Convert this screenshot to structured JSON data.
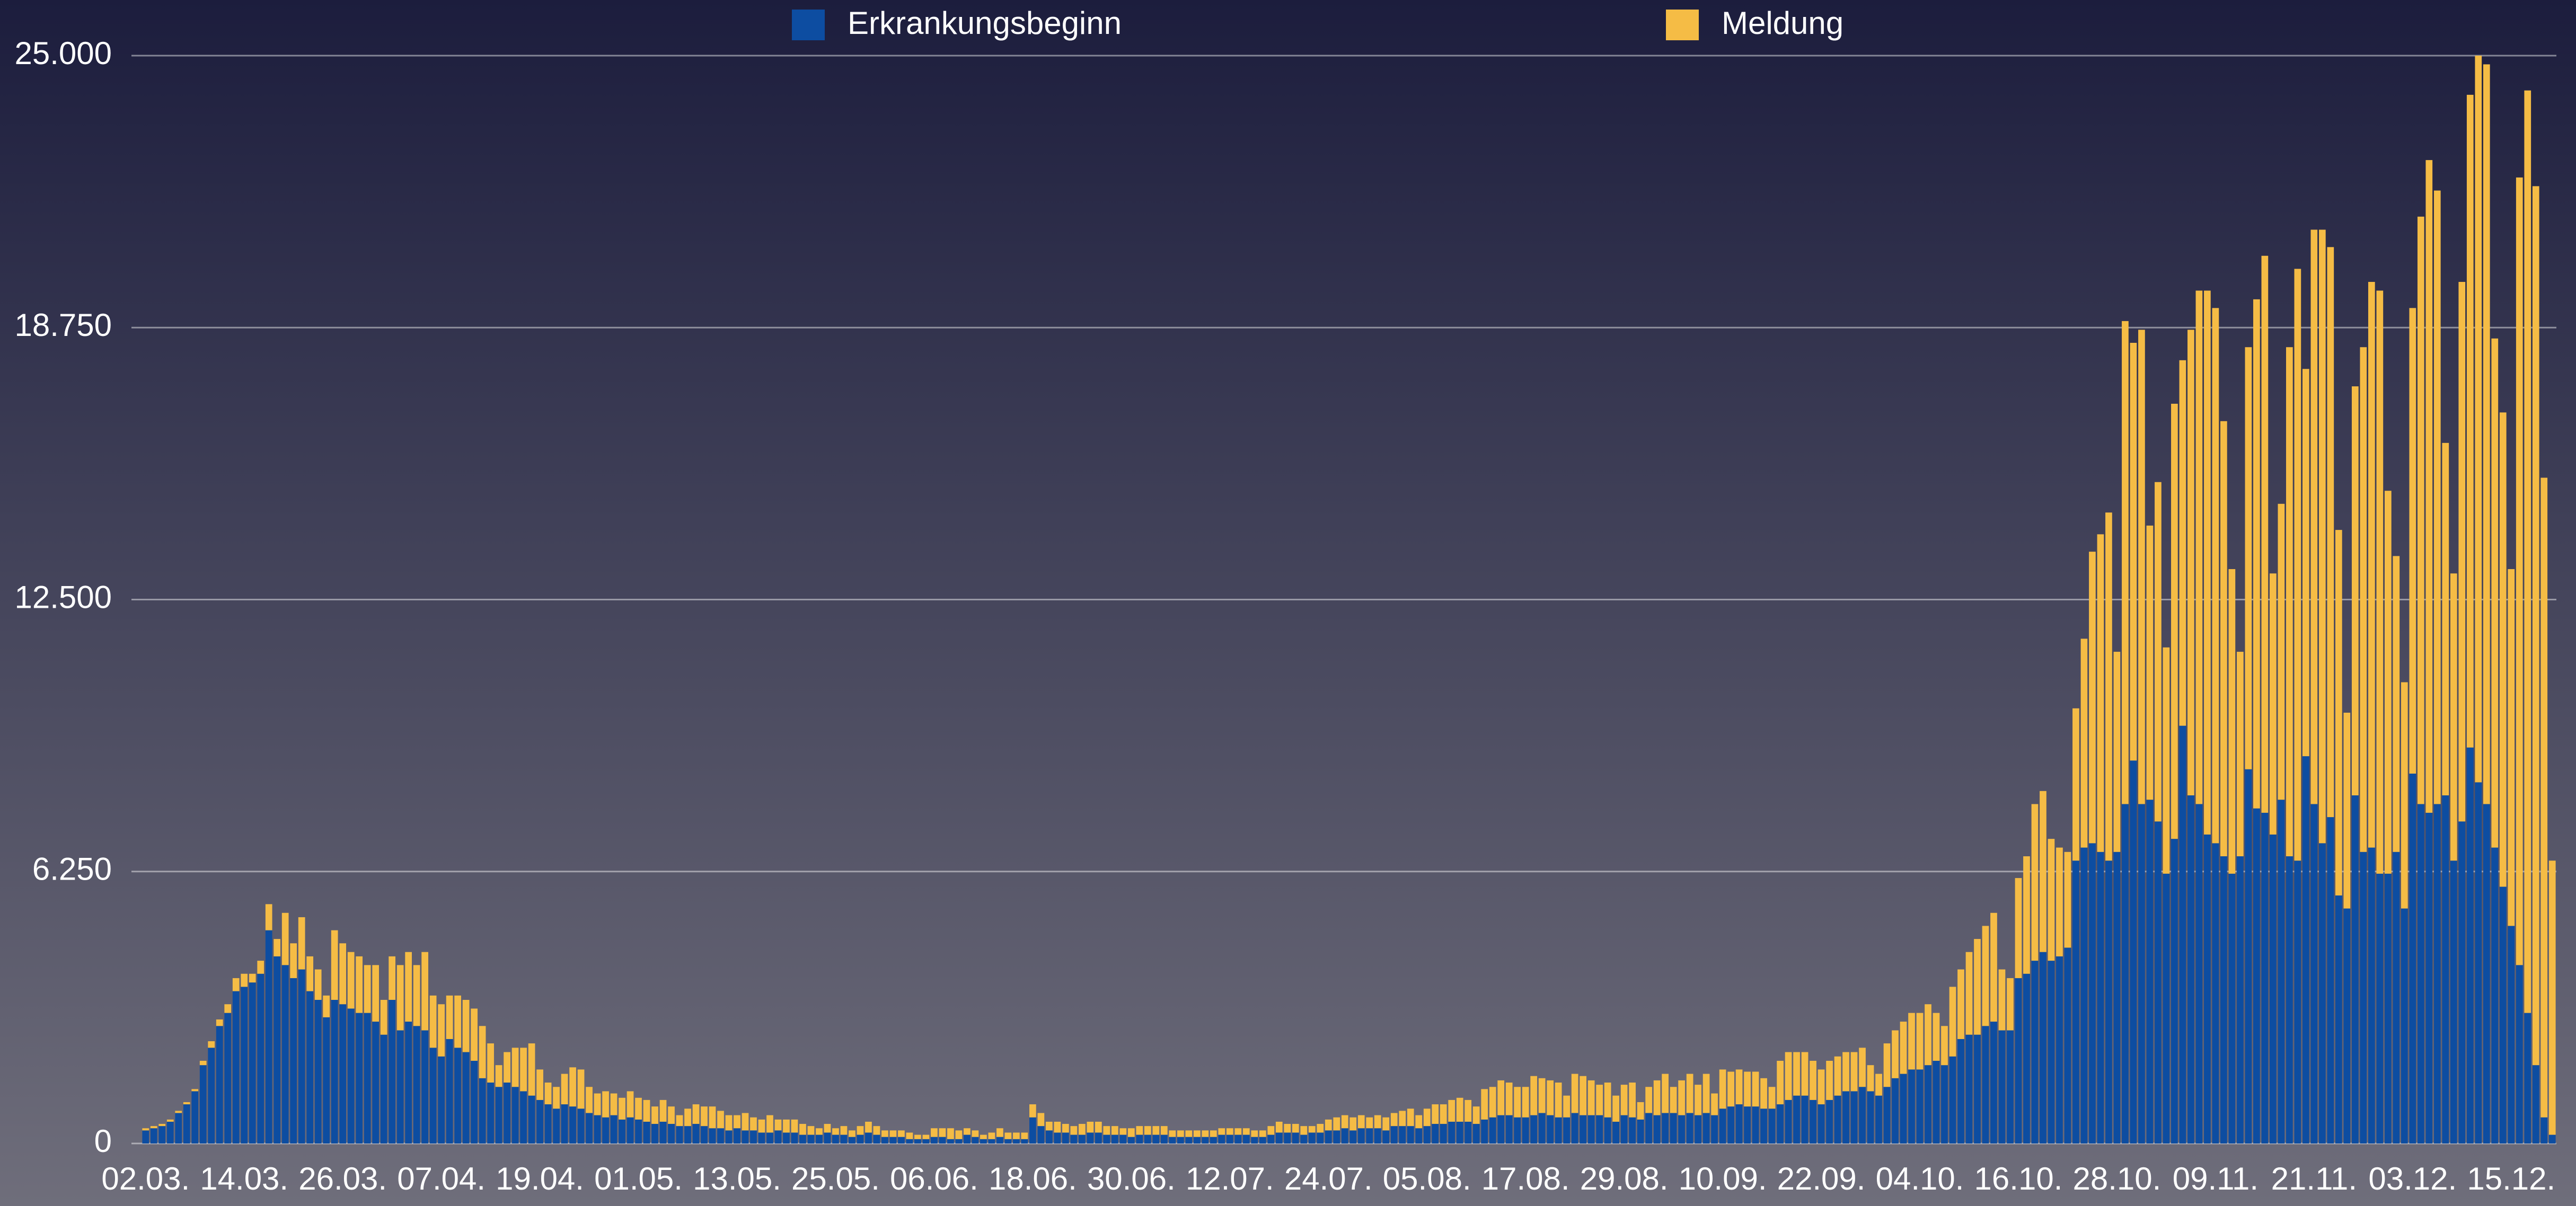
{
  "chart_data": {
    "type": "stacked_bar",
    "categories": [
      "02.03.",
      null,
      null,
      null,
      null,
      null,
      null,
      null,
      null,
      null,
      null,
      null,
      "14.03.",
      null,
      null,
      null,
      null,
      null,
      null,
      null,
      null,
      null,
      null,
      null,
      "26.03.",
      null,
      null,
      null,
      null,
      null,
      null,
      null,
      null,
      null,
      null,
      null,
      "07.04.",
      null,
      null,
      null,
      null,
      null,
      null,
      null,
      null,
      null,
      null,
      null,
      "19.04.",
      null,
      null,
      null,
      null,
      null,
      null,
      null,
      null,
      null,
      null,
      null,
      "01.05.",
      null,
      null,
      null,
      null,
      null,
      null,
      null,
      null,
      null,
      null,
      null,
      "13.05.",
      null,
      null,
      null,
      null,
      null,
      null,
      null,
      null,
      null,
      null,
      null,
      "25.05.",
      null,
      null,
      null,
      null,
      null,
      null,
      null,
      null,
      null,
      null,
      null,
      "06.06.",
      null,
      null,
      null,
      null,
      null,
      null,
      null,
      null,
      null,
      null,
      null,
      "18.06.",
      null,
      null,
      null,
      null,
      null,
      null,
      null,
      null,
      null,
      null,
      null,
      "30.06.",
      null,
      null,
      null,
      null,
      null,
      null,
      null,
      null,
      null,
      null,
      null,
      "12.07.",
      null,
      null,
      null,
      null,
      null,
      null,
      null,
      null,
      null,
      null,
      null,
      "24.07.",
      null,
      null,
      null,
      null,
      null,
      null,
      null,
      null,
      null,
      null,
      null,
      "05.08.",
      null,
      null,
      null,
      null,
      null,
      null,
      null,
      null,
      null,
      null,
      null,
      "17.08.",
      null,
      null,
      null,
      null,
      null,
      null,
      null,
      null,
      null,
      null,
      null,
      "29.08.",
      null,
      null,
      null,
      null,
      null,
      null,
      null,
      null,
      null,
      null,
      null,
      "10.09.",
      null,
      null,
      null,
      null,
      null,
      null,
      null,
      null,
      null,
      null,
      null,
      "22.09.",
      null,
      null,
      null,
      null,
      null,
      null,
      null,
      null,
      null,
      null,
      null,
      "04.10.",
      null,
      null,
      null,
      null,
      null,
      null,
      null,
      null,
      null,
      null,
      null,
      "16.10.",
      null,
      null,
      null,
      null,
      null,
      null,
      null,
      null,
      null,
      null,
      null,
      "28.10.",
      null,
      null,
      null,
      null,
      null,
      null,
      null,
      null,
      null,
      null,
      null,
      "09.11.",
      null,
      null,
      null,
      null,
      null,
      null,
      null,
      null,
      null,
      null,
      null,
      "21.11.",
      null,
      null,
      null,
      null,
      null,
      null,
      null,
      null,
      null,
      null,
      null,
      "03.12.",
      null,
      null,
      null,
      null,
      null,
      null,
      null,
      null,
      null,
      null,
      null,
      "15.12.",
      null,
      null,
      null,
      null,
      null
    ],
    "series": [
      {
        "name": "Erkrankungsbeginn",
        "color": "#0d4da1",
        "values": [
          300,
          350,
          400,
          500,
          700,
          900,
          1200,
          1800,
          2200,
          2700,
          3000,
          3500,
          3600,
          3700,
          3900,
          4900,
          4300,
          4100,
          3800,
          4000,
          3500,
          3300,
          2900,
          3300,
          3200,
          3100,
          3000,
          3000,
          2800,
          2500,
          3300,
          2600,
          2800,
          2700,
          2600,
          2200,
          2000,
          2400,
          2200,
          2100,
          1900,
          1500,
          1400,
          1300,
          1400,
          1300,
          1200,
          1100,
          1000,
          900,
          800,
          900,
          850,
          800,
          700,
          650,
          600,
          650,
          550,
          600,
          550,
          500,
          450,
          500,
          450,
          400,
          400,
          450,
          400,
          350,
          350,
          300,
          350,
          300,
          300,
          250,
          250,
          300,
          250,
          250,
          200,
          200,
          200,
          250,
          200,
          200,
          150,
          200,
          250,
          200,
          150,
          150,
          150,
          100,
          100,
          100,
          150,
          150,
          100,
          100,
          200,
          150,
          100,
          100,
          150,
          100,
          100,
          100,
          600,
          400,
          300,
          250,
          250,
          200,
          200,
          250,
          250,
          200,
          200,
          200,
          150,
          200,
          200,
          200,
          200,
          150,
          150,
          150,
          150,
          150,
          150,
          200,
          200,
          200,
          200,
          150,
          150,
          200,
          250,
          250,
          250,
          200,
          250,
          250,
          300,
          300,
          350,
          300,
          350,
          350,
          350,
          300,
          400,
          400,
          400,
          350,
          400,
          450,
          450,
          500,
          500,
          500,
          450,
          550,
          600,
          650,
          650,
          600,
          600,
          650,
          700,
          650,
          600,
          600,
          700,
          650,
          650,
          650,
          600,
          500,
          650,
          600,
          550,
          700,
          650,
          700,
          700,
          650,
          700,
          650,
          700,
          650,
          800,
          850,
          900,
          850,
          850,
          800,
          800,
          900,
          1000,
          1100,
          1100,
          1000,
          900,
          1000,
          1100,
          1200,
          1200,
          1300,
          1200,
          1100,
          1300,
          1500,
          1600,
          1700,
          1700,
          1800,
          1900,
          1800,
          2000,
          2400,
          2500,
          2500,
          2700,
          2800,
          2600,
          2600,
          3800,
          3900,
          4200,
          4400,
          4200,
          4300,
          4500,
          6500,
          6800,
          6900,
          6700,
          6500,
          6700,
          7800,
          8800,
          7800,
          7900,
          7400,
          6200,
          7000,
          9600,
          8000,
          7800,
          7100,
          6900,
          6600,
          6200,
          6600,
          8600,
          7700,
          7600,
          7100,
          7900,
          6600,
          6500,
          8900,
          7800,
          6900,
          7500,
          5700,
          5400,
          8000,
          6700,
          6800,
          6200,
          6200,
          6700,
          5400,
          8500,
          7800,
          7600,
          7800,
          8000,
          6500,
          7400,
          9100,
          8300,
          7800,
          6800,
          5900,
          5000,
          4100,
          3000,
          1800,
          600,
          200
        ]
      },
      {
        "name": "Meldung",
        "color": "#f5bc45",
        "values": [
          50,
          50,
          50,
          50,
          50,
          50,
          50,
          100,
          150,
          150,
          200,
          300,
          300,
          200,
          300,
          600,
          400,
          1200,
          800,
          1200,
          800,
          700,
          500,
          1600,
          1400,
          1300,
          1300,
          1100,
          1300,
          800,
          1000,
          1500,
          1600,
          1400,
          1800,
          1200,
          1200,
          1000,
          1200,
          1200,
          1200,
          1200,
          900,
          500,
          700,
          900,
          1000,
          1200,
          700,
          500,
          500,
          700,
          900,
          900,
          600,
          500,
          600,
          500,
          500,
          600,
          500,
          500,
          400,
          500,
          400,
          250,
          400,
          450,
          450,
          500,
          400,
          350,
          300,
          400,
          300,
          300,
          400,
          250,
          300,
          300,
          250,
          200,
          150,
          200,
          150,
          200,
          150,
          200,
          250,
          200,
          150,
          150,
          150,
          150,
          100,
          100,
          200,
          200,
          250,
          200,
          150,
          150,
          100,
          150,
          200,
          150,
          150,
          150,
          300,
          300,
          200,
          250,
          200,
          200,
          250,
          250,
          250,
          200,
          200,
          150,
          200,
          200,
          200,
          200,
          200,
          150,
          150,
          150,
          150,
          150,
          150,
          150,
          150,
          150,
          150,
          150,
          150,
          200,
          250,
          200,
          200,
          200,
          150,
          200,
          250,
          300,
          300,
          300,
          300,
          250,
          300,
          300,
          300,
          350,
          400,
          300,
          400,
          450,
          450,
          500,
          550,
          500,
          400,
          700,
          700,
          800,
          750,
          700,
          700,
          900,
          800,
          800,
          800,
          500,
          900,
          900,
          800,
          700,
          800,
          600,
          700,
          800,
          400,
          600,
          800,
          900,
          600,
          800,
          900,
          700,
          900,
          500,
          900,
          800,
          800,
          800,
          800,
          700,
          500,
          1000,
          1100,
          1000,
          1000,
          900,
          800,
          900,
          900,
          900,
          900,
          900,
          600,
          500,
          1000,
          1100,
          1200,
          1300,
          1300,
          1400,
          1100,
          900,
          1600,
          1600,
          1900,
          2200,
          2300,
          2500,
          1400,
          1200,
          2300,
          2700,
          3600,
          3700,
          2800,
          2500,
          2200,
          3500,
          4800,
          6700,
          7300,
          8000,
          4600,
          11100,
          9600,
          10900,
          6300,
          7800,
          5200,
          10000,
          8400,
          10700,
          11800,
          12500,
          12300,
          10000,
          7000,
          4700,
          9700,
          11700,
          12800,
          6000,
          6800,
          11700,
          13600,
          8900,
          13200,
          14100,
          13100,
          8400,
          4500,
          9400,
          11600,
          13000,
          13400,
          8800,
          6800,
          5200,
          10700,
          13500,
          15000,
          14100,
          8100,
          6600,
          12400,
          15000,
          16700,
          17000,
          11700,
          10900,
          8200,
          18100,
          21200,
          20200,
          14700,
          6300
        ]
      }
    ],
    "ylim": [
      0,
      25000
    ],
    "yticks": [
      0,
      {
        "value": 6250,
        "label": "6.250"
      },
      {
        "value": 12500,
        "label": "12.500"
      },
      {
        "value": 18750,
        "label": "18.750"
      },
      {
        "value": 25000,
        "label": "25.000"
      }
    ],
    "grid": true
  }
}
